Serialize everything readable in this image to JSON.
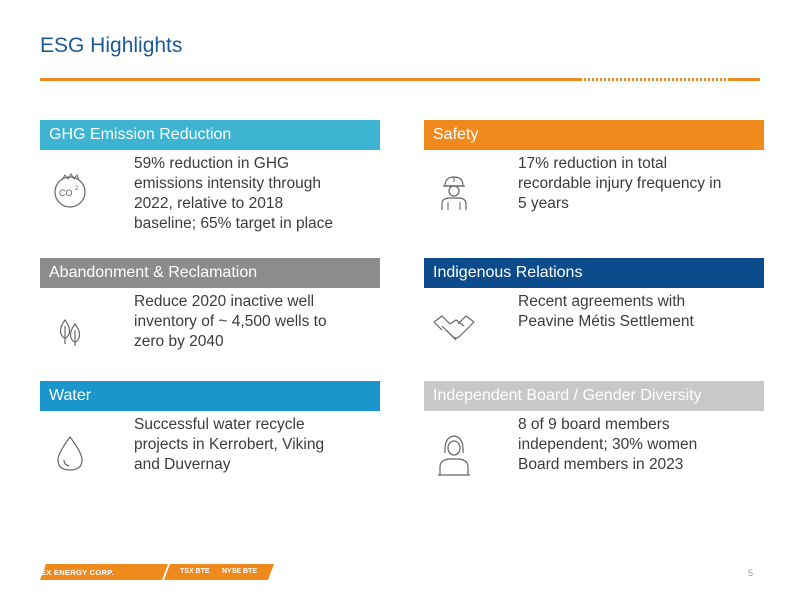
{
  "title": "ESG Highlights",
  "colors": {
    "accent_orange": "#f08a1c",
    "teal": "#3cb4d2",
    "gray": "#8c8c8c",
    "navy": "#0c4c8c",
    "blue": "#1a96cc",
    "light_gray": "#c8c8c8",
    "title_blue": "#1a5a9a"
  },
  "sections": [
    {
      "header": "GHG Emission Reduction",
      "icon": "co2-icon",
      "lines": [
        "59% reduction in GHG",
        "emissions intensity through",
        "2022, relative to 2018",
        "baseline; 65% target in place"
      ]
    },
    {
      "header": "Safety",
      "icon": "hard-hat-worker-icon",
      "lines": [
        "17% reduction in total",
        "recordable injury frequency in",
        "5 years"
      ]
    },
    {
      "header": "Abandonment & Reclamation",
      "icon": "trees-icon",
      "lines": [
        "Reduce 2020 inactive well",
        "inventory of ~ 4,500 wells to",
        "zero by 2040"
      ]
    },
    {
      "header": "Indigenous Relations",
      "icon": "handshake-icon",
      "lines": [
        "Recent agreements with",
        "Peavine Métis Settlement"
      ]
    },
    {
      "header": "Water",
      "icon": "water-drop-icon",
      "lines": [
        "Successful water recycle",
        "projects in Kerrobert, Viking",
        "and Duvernay"
      ]
    },
    {
      "header": "Independent Board / Gender Diversity",
      "icon": "woman-icon",
      "lines": [
        "8 of 9 board members",
        "independent; 30% women",
        "Board members in 2023"
      ]
    }
  ],
  "footer": {
    "company": "BAYTEX ENERGY CORP.",
    "ticker_tsx": "TSX BTE",
    "ticker_nyse": "NYSE BTE",
    "page_number": "5"
  }
}
